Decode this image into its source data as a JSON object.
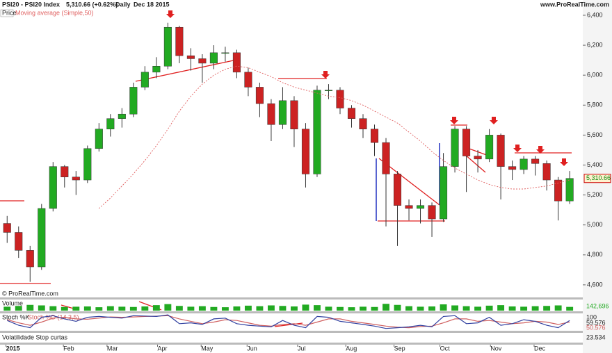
{
  "chart_data": {
    "type": "candlestick",
    "title": "PSI20 - PSI20 Index",
    "subtitle": "5,310.66 (+0.62%)",
    "period": "Daily",
    "date": "Dec 18 2015",
    "site": "www.ProRealTime.com",
    "panel_label": "Price",
    "copyright": "© ProRealTime.com",
    "last_price_label": "5,310.66",
    "x": [
      2.5,
      7.5,
      12.5,
      17.5,
      22.5,
      27.5,
      32.5,
      37.5,
      42.5,
      47.5,
      52.5,
      57.5,
      62.5,
      67.5,
      72.5,
      77.5,
      82.5,
      87.5,
      92.5,
      97.5,
      102.5,
      107.5,
      112.5,
      117.5,
      122.5,
      127.5,
      132.5,
      137.5,
      142.5,
      147.5,
      152.5,
      157.5,
      162.5,
      167.5,
      172.5,
      177.5,
      182.5,
      187.5,
      192.5,
      197.5,
      202.5,
      207.5,
      212.5,
      217.5,
      222.5,
      227.5,
      232.5,
      237.5,
      242.5,
      247.5
    ],
    "open": [
      5010,
      4950,
      4830,
      4720,
      5110,
      5390,
      5320,
      5300,
      5510,
      5640,
      5710,
      5740,
      5920,
      6020,
      6060,
      6320,
      6130,
      6110,
      6080,
      6150,
      6150,
      6020,
      5920,
      5810,
      5670,
      5830,
      5640,
      5340,
      5900,
      5900,
      5780,
      5710,
      5640,
      5550,
      5340,
      5130,
      5110,
      5130,
      5040,
      5390,
      5640,
      5460,
      5440,
      5600,
      5390,
      5370,
      5440,
      5410,
      5300,
      5160
    ],
    "high": [
      5060,
      4990,
      4860,
      5140,
      5420,
      5400,
      5360,
      5530,
      5680,
      5740,
      5780,
      5950,
      6060,
      6120,
      6350,
      6330,
      6180,
      6140,
      6200,
      6190,
      6170,
      6050,
      5950,
      5840,
      5920,
      5860,
      5680,
      5930,
      5940,
      5920,
      5800,
      5740,
      5670,
      5580,
      5360,
      5170,
      5170,
      5150,
      5480,
      5660,
      5660,
      5500,
      5640,
      5610,
      5430,
      5460,
      5460,
      5430,
      5320,
      5360
    ],
    "low": [
      4880,
      4780,
      4620,
      4700,
      5090,
      5250,
      5200,
      5280,
      5490,
      5590,
      5650,
      5720,
      5900,
      5980,
      6040,
      6080,
      6030,
      5950,
      6040,
      6090,
      5980,
      5860,
      5720,
      5560,
      5640,
      5520,
      5250,
      5320,
      5840,
      5740,
      5650,
      5580,
      5460,
      4990,
      4860,
      5030,
      5010,
      4920,
      5020,
      5350,
      5220,
      5350,
      5420,
      5170,
      5300,
      5340,
      5330,
      5230,
      5030,
      5140
    ],
    "close": [
      4950,
      4830,
      4720,
      5110,
      5390,
      5320,
      5300,
      5510,
      5640,
      5710,
      5740,
      5920,
      6020,
      6060,
      6320,
      6130,
      6110,
      6080,
      6150,
      6150,
      6020,
      5920,
      5810,
      5670,
      5830,
      5640,
      5340,
      5900,
      5900,
      5780,
      5710,
      5640,
      5550,
      5340,
      5130,
      5110,
      5130,
      5040,
      5390,
      5640,
      5460,
      5440,
      5600,
      5390,
      5370,
      5440,
      5410,
      5300,
      5160,
      5310.66
    ],
    "up_color": "#22aa22",
    "down_color": "#cc2222",
    "ma": {
      "name": "Moving average (Simple,50)",
      "color": "#e06060",
      "values": [
        null,
        null,
        null,
        null,
        null,
        null,
        null,
        null,
        5110,
        5180,
        5260,
        5340,
        5430,
        5530,
        5640,
        5760,
        5860,
        5940,
        6000,
        6040,
        6060,
        6050,
        6020,
        5990,
        5950,
        5920,
        5900,
        5880,
        5860,
        5850,
        5830,
        5800,
        5760,
        5720,
        5680,
        5620,
        5560,
        5490,
        5430,
        5380,
        5340,
        5300,
        5270,
        5250,
        5240,
        5240,
        5250,
        5260,
        5280,
        5300
      ]
    },
    "xlim": [
      0,
      252
    ],
    "ylim": [
      4516,
      6437
    ],
    "yticks": [
      {
        "value": 4600,
        "label": "4,600"
      },
      {
        "value": 4800,
        "label": "4,800"
      },
      {
        "value": 5000,
        "label": "5,000"
      },
      {
        "value": 5200,
        "label": "5,200"
      },
      {
        "value": 5400,
        "label": "5,400"
      },
      {
        "value": 5600,
        "label": "5,600"
      },
      {
        "value": 5800,
        "label": "5,800"
      },
      {
        "value": 6000,
        "label": "6,000"
      },
      {
        "value": 6200,
        "label": "6,200"
      },
      {
        "value": 6400,
        "label": "6,400"
      }
    ],
    "xticks": [
      {
        "value": 2,
        "label": "2015"
      },
      {
        "value": 27,
        "label": "Feb"
      },
      {
        "value": 46,
        "label": "Mar"
      },
      {
        "value": 68,
        "label": "Apr"
      },
      {
        "value": 87,
        "label": "May"
      },
      {
        "value": 107,
        "label": "Jun"
      },
      {
        "value": 129,
        "label": "Jul"
      },
      {
        "value": 150,
        "label": "Aug"
      },
      {
        "value": 171,
        "label": "Sep"
      },
      {
        "value": 191,
        "label": "Oct"
      },
      {
        "value": 213,
        "label": "Nov"
      },
      {
        "value": 232,
        "label": "Dec"
      }
    ],
    "volume": {
      "name": "Volume",
      "color": "#22aa22",
      "last_label": "142,696",
      "ylim": [
        0,
        400000
      ],
      "values": [
        150000,
        180000,
        220000,
        200000,
        170000,
        140000,
        150000,
        160000,
        130000,
        170000,
        150000,
        140000,
        160000,
        210000,
        250000,
        180000,
        150000,
        170000,
        140000,
        130000,
        160000,
        190000,
        170000,
        200000,
        180000,
        160000,
        230000,
        210000,
        150000,
        140000,
        130000,
        150000,
        140000,
        260000,
        220000,
        170000,
        150000,
        160000,
        240000,
        200000,
        170000,
        150000,
        190000,
        210000,
        160000,
        150000,
        170000,
        180000,
        200000,
        142696
      ]
    },
    "stoch": {
      "k_name": "Stoch %K",
      "d_name": "Stoch %D (14,3,5)",
      "top_label": "100",
      "ylim": [
        0,
        100
      ],
      "k_color": "#3040a0",
      "d_color": "#d06060",
      "k_label": "59.576",
      "d_label": "50.576",
      "k": [
        60,
        30,
        15,
        80,
        90,
        70,
        55,
        80,
        85,
        80,
        75,
        90,
        88,
        85,
        95,
        40,
        45,
        35,
        70,
        75,
        40,
        30,
        25,
        20,
        60,
        30,
        15,
        85,
        80,
        55,
        45,
        35,
        25,
        10,
        15,
        20,
        30,
        20,
        85,
        90,
        40,
        45,
        80,
        30,
        40,
        65,
        55,
        30,
        15,
        59.576
      ],
      "d": [
        65,
        45,
        30,
        50,
        75,
        80,
        70,
        68,
        75,
        82,
        80,
        82,
        85,
        87,
        90,
        70,
        55,
        40,
        50,
        65,
        60,
        45,
        30,
        25,
        35,
        40,
        30,
        50,
        70,
        70,
        55,
        45,
        35,
        25,
        18,
        15,
        22,
        25,
        45,
        70,
        70,
        55,
        60,
        50,
        40,
        45,
        55,
        50,
        35,
        50.576
      ]
    },
    "volatility": {
      "name": "Volatilidade Stop curtas",
      "last_label": "23.534"
    }
  }
}
